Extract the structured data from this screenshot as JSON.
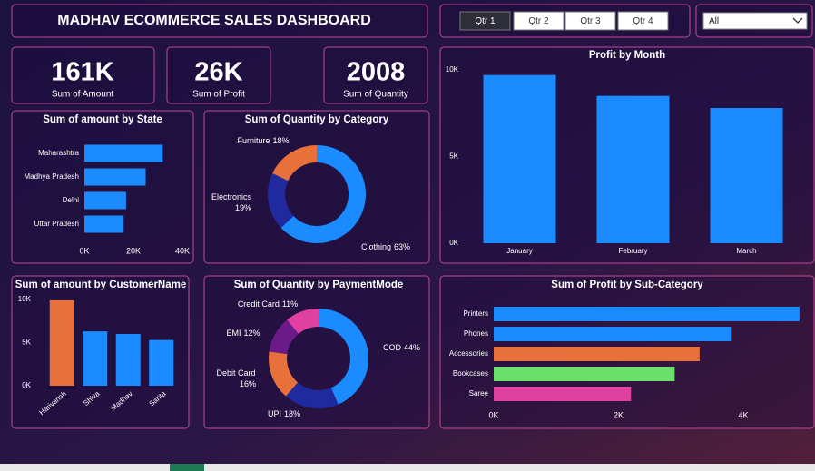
{
  "header": {
    "title": "MADHAV ECOMMERCE SALES DASHBOARD"
  },
  "slicer": {
    "options": [
      "Qtr 1",
      "Qtr 2",
      "Qtr 3",
      "Qtr 4"
    ],
    "selected": "Qtr 1",
    "dropdown": "All"
  },
  "cards": [
    {
      "value": "161K",
      "label": "Sum of Amount"
    },
    {
      "value": "26K",
      "label": "Sum of Profit"
    },
    {
      "value": "2008",
      "label": "Sum of Quantity"
    }
  ],
  "chart_data": [
    {
      "type": "bar",
      "horizontal": true,
      "title": "Sum of amount by State",
      "categories": [
        "Maharashtra",
        "Madhya Pradesh",
        "Delhi",
        "Uttar Pradesh"
      ],
      "values": [
        32000,
        25000,
        17000,
        16000
      ],
      "color": "#1a8cff",
      "xlim": [
        0,
        40000
      ],
      "xticks": [
        {
          "value": 0,
          "label": "0K"
        },
        {
          "value": 20000,
          "label": "20K"
        },
        {
          "value": 40000,
          "label": "40K"
        }
      ]
    },
    {
      "type": "donut",
      "title": "Sum of Quantity by Category",
      "categories": [
        "Clothing",
        "Electronics",
        "Furniture"
      ],
      "values": [
        63,
        19,
        18
      ],
      "value_labels": [
        "63%",
        "19%",
        "18%"
      ],
      "colors": [
        "#1a8cff",
        "#1f2a9e",
        "#e8703a"
      ]
    },
    {
      "type": "bar",
      "horizontal": false,
      "title": "Profit by Month",
      "categories": [
        "January",
        "February",
        "March"
      ],
      "values": [
        9700,
        8500,
        7800
      ],
      "color": "#1a8cff",
      "ylim": [
        0,
        10000
      ],
      "yticks": [
        {
          "value": 0,
          "label": "0K"
        },
        {
          "value": 5000,
          "label": "5K"
        },
        {
          "value": 10000,
          "label": "10K"
        }
      ]
    },
    {
      "type": "bar",
      "horizontal": false,
      "title": "Sum of amount by CustomerName",
      "categories": [
        "Harivansh",
        "Shiva",
        "Madhav",
        "Sarita"
      ],
      "values": [
        9900,
        6300,
        6000,
        5300
      ],
      "colors": [
        "#e8703a",
        "#1a8cff",
        "#1a8cff",
        "#1a8cff"
      ],
      "ylim": [
        0,
        10000
      ],
      "yticks": [
        {
          "value": 0,
          "label": "0K"
        },
        {
          "value": 5000,
          "label": "5K"
        },
        {
          "value": 10000,
          "label": "10K"
        }
      ]
    },
    {
      "type": "donut",
      "title": "Sum of Quantity by PaymentMode",
      "categories": [
        "COD",
        "UPI",
        "Debit Card",
        "EMI",
        "Credit Card"
      ],
      "values": [
        44,
        18,
        16,
        12,
        11
      ],
      "value_labels": [
        "44%",
        "18%",
        "16%",
        "12%",
        "11%"
      ],
      "colors": [
        "#1a8cff",
        "#1f2a9e",
        "#e8703a",
        "#6b1a8a",
        "#e040a0"
      ]
    },
    {
      "type": "bar",
      "horizontal": true,
      "title": "Sum of Profit by Sub-Category",
      "categories": [
        "Printers",
        "Phones",
        "Accessories",
        "Bookcases",
        "Saree"
      ],
      "values": [
        4900,
        3800,
        3300,
        2900,
        2200
      ],
      "colors": [
        "#1a8cff",
        "#1a8cff",
        "#e8703a",
        "#6be06b",
        "#e040a0"
      ],
      "xlim": [
        0,
        5000
      ],
      "xticks": [
        {
          "value": 0,
          "label": "0K"
        },
        {
          "value": 2000,
          "label": "2K"
        },
        {
          "value": 4000,
          "label": "4K"
        }
      ]
    }
  ]
}
